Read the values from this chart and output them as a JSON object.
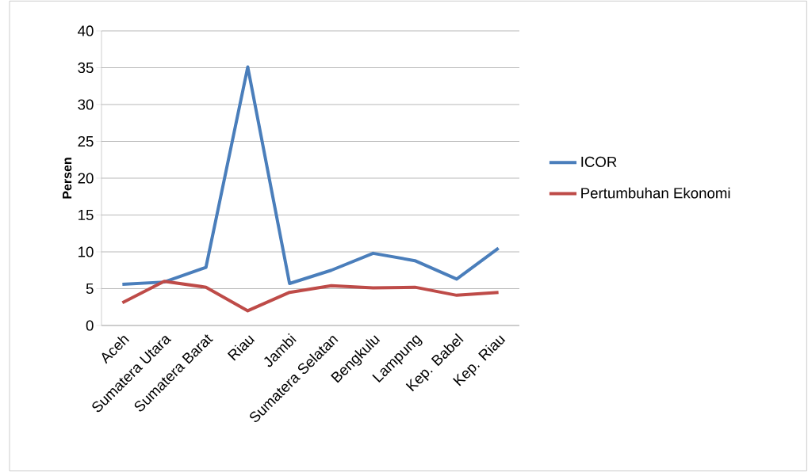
{
  "chart_data": {
    "type": "line",
    "ylabel": "Persen",
    "categories": [
      "Aceh",
      "Sumatera Utara",
      "Sumatera Barat",
      "Riau",
      "Jambi",
      "Sumatera Selatan",
      "Bengkulu",
      "Lampung",
      "Kep. Babel",
      "Kep. Riau"
    ],
    "series": [
      {
        "name": "ICOR",
        "color": "#4a7ebb",
        "values": [
          5.6,
          5.9,
          7.9,
          35.1,
          5.7,
          7.5,
          9.8,
          8.8,
          6.3,
          10.5
        ]
      },
      {
        "name": "Pertumbuhan Ekonomi",
        "color": "#be4b48",
        "values": [
          3.1,
          6.0,
          5.2,
          2.0,
          4.5,
          5.4,
          5.1,
          5.2,
          4.1,
          4.5
        ]
      }
    ],
    "ylim": [
      0,
      40
    ],
    "yticks": [
      0,
      5,
      10,
      15,
      20,
      25,
      30,
      35,
      40
    ],
    "grid": "y",
    "legend": "right",
    "marker": "none",
    "line_style": "solid"
  }
}
